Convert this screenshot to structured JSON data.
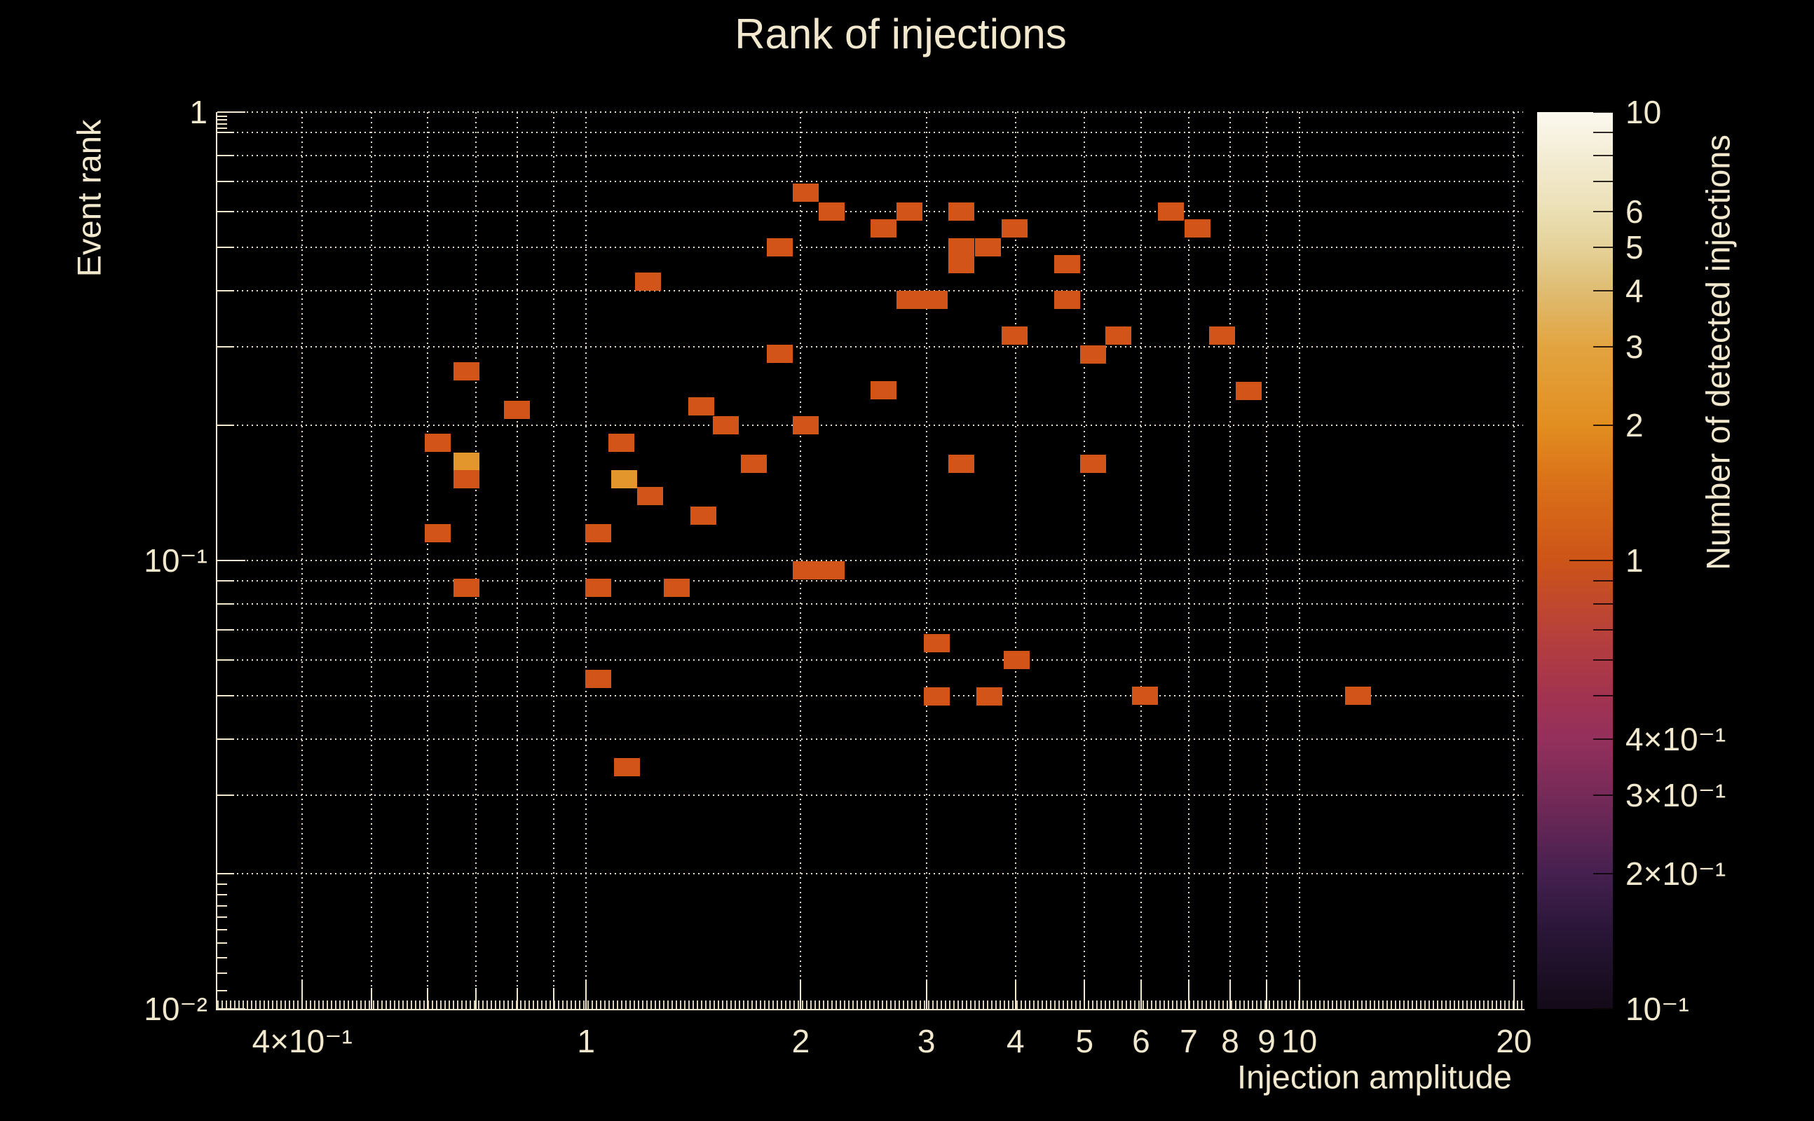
{
  "header": {
    "title": "Rank of injections"
  },
  "chart_data": {
    "type": "heatmap",
    "title": "Rank of injections",
    "xlabel": "Injection amplitude",
    "ylabel": "Event rank",
    "colorbar_label": "Number of detected injections",
    "x_scale": "log",
    "y_scale": "log",
    "color_scale": "log",
    "x_range": [
      0.304,
      20.6
    ],
    "y_range": [
      0.01,
      1.0
    ],
    "color_range": [
      0.1,
      10
    ],
    "grid": true,
    "background_color": "#000000",
    "text_color": "#f1e8cd",
    "x_ticks": [
      {
        "v": 0.4,
        "label": "4×10⁻¹"
      },
      {
        "v": 1,
        "label": "1"
      },
      {
        "v": 2,
        "label": "2"
      },
      {
        "v": 3,
        "label": "3"
      },
      {
        "v": 4,
        "label": "4"
      },
      {
        "v": 5,
        "label": "5"
      },
      {
        "v": 6,
        "label": "6"
      },
      {
        "v": 7,
        "label": "7"
      },
      {
        "v": 8,
        "label": "8"
      },
      {
        "v": 9,
        "label": "9"
      },
      {
        "v": 10,
        "label": "10"
      },
      {
        "v": 20,
        "label": "20"
      }
    ],
    "x_gridlines": [
      0.4,
      0.5,
      0.6,
      0.7,
      0.8,
      0.9,
      1,
      2,
      3,
      4,
      5,
      6,
      7,
      8,
      9,
      10,
      20
    ],
    "y_ticks": [
      {
        "v": 1,
        "label": "1"
      },
      {
        "v": 0.1,
        "label": "10⁻¹"
      },
      {
        "v": 0.01,
        "label": "10⁻²"
      }
    ],
    "y_gridlines": [
      1,
      0.9,
      0.8,
      0.7,
      0.6,
      0.5,
      0.4,
      0.3,
      0.2,
      0.1,
      0.09,
      0.08,
      0.07,
      0.06,
      0.05,
      0.04,
      0.03,
      0.02
    ],
    "y_minor_ticks": [
      0.98,
      0.96,
      0.94,
      0.92,
      0.019,
      0.018,
      0.017,
      0.016,
      0.015,
      0.014,
      0.013,
      0.012,
      0.011
    ],
    "colorbar_ticks": [
      {
        "v": 10,
        "label": "10"
      },
      {
        "v": 6,
        "label": "6"
      },
      {
        "v": 5,
        "label": "5"
      },
      {
        "v": 4,
        "label": "4"
      },
      {
        "v": 3,
        "label": "3"
      },
      {
        "v": 2,
        "label": "2"
      },
      {
        "v": 1,
        "label": "1"
      },
      {
        "v": 0.4,
        "label": "4×10⁻¹"
      },
      {
        "v": 0.3,
        "label": "3×10⁻¹"
      },
      {
        "v": 0.2,
        "label": "2×10⁻¹"
      },
      {
        "v": 0.1,
        "label": "10⁻¹"
      }
    ],
    "colorbar_minor_ticks": [
      9,
      8,
      7,
      0.9,
      0.8,
      0.7,
      0.6,
      0.5
    ],
    "colormap_stops": [
      [
        10,
        "#fbf8ee"
      ],
      [
        6,
        "#ebdfb4"
      ],
      [
        5,
        "#e5d299"
      ],
      [
        4,
        "#dfbc72"
      ],
      [
        3,
        "#e2a440"
      ],
      [
        2,
        "#e28e20"
      ],
      [
        1.5,
        "#da7119"
      ],
      [
        1,
        "#cd5418"
      ],
      [
        0.7,
        "#b8413a"
      ],
      [
        0.5,
        "#a23350"
      ],
      [
        0.4,
        "#94305c"
      ],
      [
        0.3,
        "#762a58"
      ],
      [
        0.2,
        "#452050"
      ],
      [
        0.15,
        "#2a1638"
      ],
      [
        0.1,
        "#130a18"
      ]
    ],
    "count_colors": {
      "1": "#d35419",
      "2": "#e2962c"
    },
    "bin_size_decades": {
      "x": 0.0366,
      "y": 0.0406
    },
    "cells": [
      [
        1.22,
        0.419,
        1
      ],
      [
        0.68,
        0.264,
        1
      ],
      [
        0.8,
        0.217,
        1
      ],
      [
        1.45,
        0.221,
        1
      ],
      [
        1.57,
        0.2,
        1
      ],
      [
        0.62,
        0.183,
        1
      ],
      [
        1.12,
        0.183,
        1
      ],
      [
        0.68,
        0.166,
        2
      ],
      [
        1.72,
        0.164,
        1
      ],
      [
        3.36,
        0.164,
        1
      ],
      [
        5.14,
        0.164,
        1
      ],
      [
        0.68,
        0.152,
        1
      ],
      [
        1.13,
        0.152,
        2
      ],
      [
        1.23,
        0.139,
        1
      ],
      [
        1.46,
        0.126,
        1
      ],
      [
        0.62,
        0.115,
        1
      ],
      [
        1.04,
        0.115,
        1
      ],
      [
        2.03,
        0.095,
        1
      ],
      [
        2.21,
        0.095,
        1
      ],
      [
        0.68,
        0.087,
        1
      ],
      [
        1.04,
        0.087,
        1
      ],
      [
        1.34,
        0.087,
        1
      ],
      [
        3.1,
        0.0655,
        1
      ],
      [
        4.02,
        0.06,
        1
      ],
      [
        1.04,
        0.0545,
        1
      ],
      [
        3.1,
        0.0497,
        1
      ],
      [
        3.68,
        0.0497,
        1
      ],
      [
        6.07,
        0.05,
        1
      ],
      [
        12.1,
        0.05,
        1
      ],
      [
        1.14,
        0.0346,
        1
      ],
      [
        2.03,
        0.66,
        1
      ],
      [
        2.21,
        0.6,
        1
      ],
      [
        2.84,
        0.6,
        1
      ],
      [
        3.36,
        0.6,
        1
      ],
      [
        6.6,
        0.6,
        1
      ],
      [
        2.61,
        0.55,
        1
      ],
      [
        3.99,
        0.55,
        1
      ],
      [
        7.2,
        0.55,
        1
      ],
      [
        1.87,
        0.5,
        1
      ],
      [
        3.36,
        0.5,
        1
      ],
      [
        3.66,
        0.5,
        1
      ],
      [
        3.36,
        0.458,
        1
      ],
      [
        4.73,
        0.458,
        1
      ],
      [
        2.84,
        0.381,
        1
      ],
      [
        3.08,
        0.381,
        1
      ],
      [
        4.73,
        0.381,
        1
      ],
      [
        3.99,
        0.317,
        1
      ],
      [
        5.57,
        0.317,
        1
      ],
      [
        7.8,
        0.317,
        1
      ],
      [
        1.87,
        0.289,
        1
      ],
      [
        5.14,
        0.288,
        1
      ],
      [
        2.61,
        0.24,
        1
      ],
      [
        8.5,
        0.239,
        1
      ],
      [
        2.03,
        0.2,
        1
      ]
    ]
  }
}
